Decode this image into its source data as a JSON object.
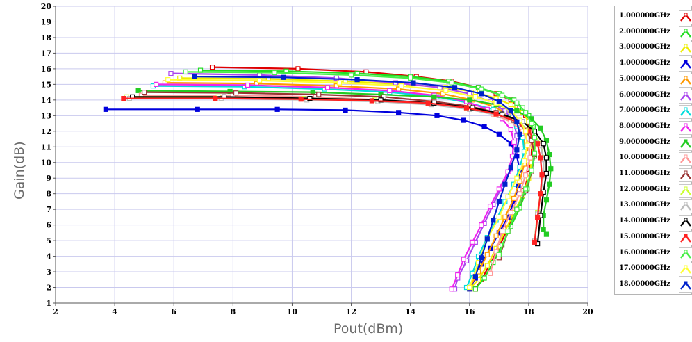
{
  "chart_data": {
    "type": "line",
    "xlabel": "Pout(dBm)",
    "ylabel": "Gain(dB)",
    "xlim": [
      2,
      20
    ],
    "ylim": [
      1,
      20
    ],
    "xticks": [
      "2",
      "4",
      "6",
      "8",
      "10",
      "12",
      "14",
      "16",
      "18",
      "20"
    ],
    "yticks": [
      "1",
      "2",
      "3",
      "4",
      "5",
      "6",
      "7",
      "8",
      "9",
      "10",
      "11",
      "12",
      "13",
      "14",
      "15",
      "16",
      "17",
      "18",
      "19",
      "20"
    ],
    "grid": true,
    "legend_position": "right",
    "series": [
      {
        "name": "1.000000GHz",
        "color": "#e00000",
        "marker": "open-square",
        "x": [
          7.3,
          10.2,
          12.5,
          14.2,
          15.4,
          16.3,
          16.9,
          17.4,
          17.7,
          17.9,
          18.05,
          18.1,
          18.1,
          18.0,
          17.85,
          17.6,
          17.3,
          17.0,
          16.7,
          16.4,
          16.2
        ],
        "y": [
          16.1,
          16.0,
          15.8,
          15.5,
          15.2,
          14.8,
          14.4,
          14.0,
          13.5,
          13.0,
          12.3,
          11.4,
          10.3,
          9.3,
          8.2,
          7.0,
          5.8,
          4.6,
          3.5,
          2.5,
          1.9
        ]
      },
      {
        "name": "2.000000GHz",
        "color": "#22dd22",
        "marker": "open-square",
        "x": [
          6.9,
          9.8,
          12.2,
          14.0,
          15.3,
          16.3,
          17.0,
          17.5,
          17.8,
          18.0,
          18.15,
          18.2,
          18.2,
          18.1,
          17.95,
          17.7,
          17.4,
          17.1,
          16.8,
          16.5,
          16.2
        ],
        "y": [
          15.9,
          15.85,
          15.7,
          15.5,
          15.2,
          14.8,
          14.4,
          14.0,
          13.5,
          13.0,
          12.3,
          11.4,
          10.4,
          9.4,
          8.3,
          7.1,
          5.9,
          4.7,
          3.6,
          2.6,
          1.9
        ]
      },
      {
        "name": "3.000000GHz",
        "color": "#eeee00",
        "marker": "open-square",
        "x": [
          6.2,
          9.2,
          11.8,
          13.8,
          15.2,
          16.2,
          16.9,
          17.4,
          17.8,
          18.0,
          18.1,
          18.15,
          18.1,
          18.0,
          17.8,
          17.5,
          17.2,
          16.9,
          16.6,
          16.3,
          16.0
        ],
        "y": [
          15.4,
          15.35,
          15.2,
          15.0,
          14.8,
          14.5,
          14.1,
          13.7,
          13.2,
          12.6,
          11.9,
          11.0,
          10.0,
          9.0,
          7.9,
          6.8,
          5.6,
          4.5,
          3.4,
          2.5,
          1.9
        ]
      },
      {
        "name": "4.000000GHz",
        "color": "#0000dd",
        "marker": "filled-square",
        "x": [
          3.7,
          6.8,
          9.5,
          11.8,
          13.6,
          14.9,
          15.8,
          16.5,
          17.0,
          17.4,
          17.6,
          17.7,
          17.65,
          17.5,
          17.3,
          17.0,
          16.7,
          16.4,
          16.2,
          16.0
        ],
        "y": [
          13.4,
          13.4,
          13.4,
          13.35,
          13.2,
          13.0,
          12.7,
          12.3,
          11.8,
          11.2,
          10.4,
          9.5,
          8.5,
          7.5,
          6.5,
          5.5,
          4.5,
          3.5,
          2.6,
          1.9
        ]
      },
      {
        "name": "5.000000GHz",
        "color": "#ff9900",
        "marker": "open-square",
        "x": [
          5.7,
          8.8,
          11.5,
          13.6,
          15.1,
          16.1,
          16.8,
          17.3,
          17.6,
          17.8,
          17.9,
          17.85,
          17.7,
          17.5,
          17.2,
          16.9,
          16.6,
          16.3,
          16.0
        ],
        "y": [
          15.1,
          15.05,
          14.9,
          14.7,
          14.4,
          14.0,
          13.6,
          13.1,
          12.5,
          11.8,
          10.9,
          9.9,
          8.8,
          7.7,
          6.5,
          5.3,
          4.1,
          3.0,
          2.0
        ]
      },
      {
        "name": "6.000000GHz",
        "color": "#aa44ee",
        "marker": "open-square",
        "x": [
          5.9,
          8.9,
          11.5,
          13.5,
          15.0,
          16.0,
          16.7,
          17.2,
          17.5,
          17.6,
          17.55,
          17.4,
          17.1,
          16.8,
          16.5,
          16.2,
          15.9,
          15.6,
          15.5
        ],
        "y": [
          15.7,
          15.6,
          15.4,
          15.1,
          14.8,
          14.4,
          13.9,
          13.3,
          12.6,
          11.7,
          10.7,
          9.6,
          8.5,
          7.3,
          6.1,
          4.9,
          3.7,
          2.6,
          1.9
        ]
      },
      {
        "name": "7.000000GHz",
        "color": "#00dddd",
        "marker": "open-square",
        "x": [
          5.3,
          8.4,
          11.1,
          13.3,
          14.9,
          16.0,
          16.8,
          17.3,
          17.6,
          17.8,
          17.85,
          17.7,
          17.5,
          17.2,
          16.9,
          16.6,
          16.3,
          16.1,
          15.9
        ],
        "y": [
          14.9,
          14.85,
          14.7,
          14.5,
          14.2,
          13.8,
          13.4,
          12.9,
          12.3,
          11.6,
          10.7,
          9.7,
          8.6,
          7.5,
          6.3,
          5.2,
          4.0,
          2.9,
          2.0
        ]
      },
      {
        "name": "8.000000GHz",
        "color": "#ee22ee",
        "marker": "open-square",
        "x": [
          5.4,
          8.5,
          11.2,
          13.3,
          14.8,
          15.9,
          16.6,
          17.1,
          17.4,
          17.5,
          17.45,
          17.3,
          17.0,
          16.7,
          16.4,
          16.1,
          15.8,
          15.6,
          15.4
        ],
        "y": [
          15.0,
          14.95,
          14.8,
          14.6,
          14.3,
          13.9,
          13.4,
          12.8,
          12.1,
          11.3,
          10.4,
          9.4,
          8.3,
          7.2,
          6.0,
          4.9,
          3.8,
          2.8,
          1.9
        ]
      },
      {
        "name": "9.000000GHz",
        "color": "#22cc22",
        "marker": "filled-square",
        "x": [
          4.8,
          7.9,
          10.7,
          13.0,
          14.8,
          16.0,
          16.9,
          17.6,
          18.1,
          18.4,
          18.6,
          18.7,
          18.75,
          18.7,
          18.6,
          18.5,
          18.5,
          18.6
        ],
        "y": [
          14.6,
          14.55,
          14.5,
          14.35,
          14.2,
          14.0,
          13.7,
          13.3,
          12.8,
          12.2,
          11.4,
          10.5,
          9.6,
          8.6,
          7.6,
          6.6,
          5.7,
          5.4
        ]
      },
      {
        "name": "10.00000GHz",
        "color": "#ff9999",
        "marker": "open-square",
        "x": [
          4.9,
          8.0,
          10.8,
          13.0,
          14.7,
          15.9,
          16.8,
          17.4,
          17.8,
          18.0,
          18.05,
          17.9,
          17.7,
          17.4,
          17.1,
          16.9,
          16.7
        ],
        "y": [
          14.3,
          14.3,
          14.2,
          14.0,
          13.8,
          13.5,
          13.1,
          12.6,
          12.0,
          11.2,
          10.3,
          9.2,
          8.0,
          6.8,
          5.6,
          4.3,
          2.9
        ]
      },
      {
        "name": "11.00000GHz",
        "color": "#993333",
        "marker": "open-square",
        "x": [
          5.0,
          8.1,
          10.9,
          13.1,
          14.8,
          16.0,
          16.9,
          17.5,
          17.9,
          18.1,
          18.2,
          18.1,
          17.9,
          17.6,
          17.3,
          17.0
        ],
        "y": [
          14.5,
          14.45,
          14.35,
          14.2,
          13.9,
          13.6,
          13.2,
          12.7,
          12.1,
          11.4,
          10.5,
          9.4,
          8.2,
          7.0,
          5.6,
          3.9
        ]
      },
      {
        "name": "12.00000GHz",
        "color": "#ccff33",
        "marker": "open-square",
        "x": [
          4.4,
          7.5,
          10.4,
          12.8,
          14.6,
          15.9,
          16.9,
          17.6,
          18.1,
          18.4,
          18.5,
          18.5,
          18.4,
          18.3,
          18.2
        ],
        "y": [
          14.2,
          14.2,
          14.1,
          14.0,
          13.8,
          13.5,
          13.1,
          12.6,
          12.0,
          11.2,
          10.3,
          9.2,
          8.0,
          6.8,
          5.0
        ]
      },
      {
        "name": "13.00000GHz",
        "color": "#bbbbbb",
        "marker": "open-square",
        "x": [
          4.5,
          7.6,
          10.5,
          12.9,
          14.7,
          16.0,
          17.0,
          17.7,
          18.1,
          18.4,
          18.5,
          18.5,
          18.4,
          18.3,
          18.2
        ],
        "y": [
          14.1,
          14.1,
          14.0,
          13.9,
          13.7,
          13.4,
          13.0,
          12.5,
          11.9,
          11.1,
          10.2,
          9.2,
          8.0,
          6.7,
          5.0
        ]
      },
      {
        "name": "14.00000GHz",
        "color": "#000000",
        "marker": "open-square",
        "x": [
          4.6,
          7.7,
          10.6,
          13.0,
          14.8,
          16.1,
          17.1,
          17.8,
          18.2,
          18.5,
          18.6,
          18.6,
          18.5,
          18.4,
          18.3
        ],
        "y": [
          14.2,
          14.2,
          14.1,
          14.0,
          13.8,
          13.5,
          13.1,
          12.6,
          12.0,
          11.2,
          10.3,
          9.3,
          8.1,
          6.6,
          4.8
        ]
      },
      {
        "name": "15.00000GHz",
        "color": "#ff2222",
        "marker": "filled-square",
        "x": [
          4.3,
          7.4,
          10.3,
          12.7,
          14.6,
          15.9,
          16.9,
          17.6,
          18.0,
          18.3,
          18.4,
          18.45,
          18.4,
          18.3,
          18.2
        ],
        "y": [
          14.1,
          14.1,
          14.05,
          13.95,
          13.8,
          13.5,
          13.1,
          12.6,
          12.0,
          11.2,
          10.3,
          9.2,
          8.0,
          6.5,
          4.9
        ]
      },
      {
        "name": "16.00000GHz",
        "color": "#44ee44",
        "marker": "open-square",
        "x": [
          6.4,
          9.4,
          12.0,
          14.0,
          15.4,
          16.4,
          17.1,
          17.6,
          17.9,
          18.1,
          18.2,
          18.2,
          18.1,
          17.9,
          17.6,
          17.3,
          17.0
        ],
        "y": [
          15.8,
          15.75,
          15.6,
          15.4,
          15.1,
          14.7,
          14.3,
          13.8,
          13.2,
          12.5,
          11.6,
          10.6,
          9.5,
          8.3,
          7.0,
          5.6,
          4.1
        ]
      },
      {
        "name": "17.00000GHz",
        "color": "#ffff33",
        "marker": "open-square",
        "x": [
          5.8,
          8.9,
          11.6,
          13.7,
          15.2,
          16.2,
          16.9,
          17.4,
          17.7,
          17.9,
          17.95,
          17.85,
          17.6,
          17.3,
          17.0,
          16.6,
          16.3,
          16.0
        ],
        "y": [
          15.3,
          15.25,
          15.1,
          14.9,
          14.6,
          14.2,
          13.8,
          13.3,
          12.7,
          12.0,
          11.1,
          10.1,
          9.0,
          7.8,
          6.5,
          5.1,
          3.6,
          2.0
        ]
      },
      {
        "name": "18.00000GHz",
        "color": "#0022cc",
        "marker": "filled-square",
        "x": [
          6.7,
          9.7,
          12.2,
          14.1,
          15.5,
          16.4,
          17.0,
          17.4,
          17.6,
          17.7,
          17.6,
          17.4,
          17.2,
          17.0,
          16.8,
          16.6,
          16.4,
          16.2
        ],
        "y": [
          15.5,
          15.45,
          15.3,
          15.1,
          14.8,
          14.4,
          13.9,
          13.3,
          12.6,
          11.8,
          10.8,
          9.7,
          8.6,
          7.5,
          6.3,
          5.1,
          3.9,
          2.7
        ]
      }
    ]
  }
}
